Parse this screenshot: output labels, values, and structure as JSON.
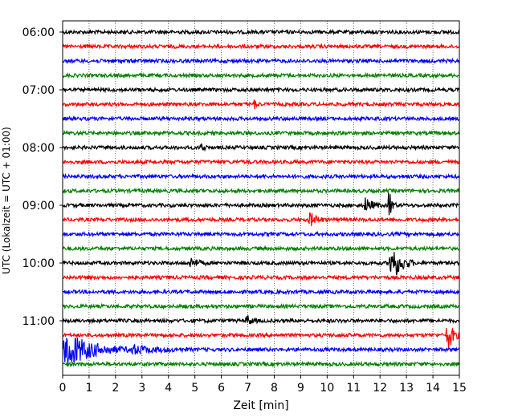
{
  "chart_data": {
    "type": "line",
    "title": "",
    "xlabel": "Zeit  [min]",
    "ylabel": "UTC (Lokalzeit = UTC + 01:00)",
    "xlim": [
      0,
      15
    ],
    "x_ticks": [
      "0",
      "1",
      "2",
      "3",
      "4",
      "5",
      "6",
      "7",
      "8",
      "9",
      "10",
      "11",
      "12",
      "13",
      "14",
      "15"
    ],
    "y_ticks": [
      "06:00",
      "07:00",
      "08:00",
      "09:00",
      "10:00",
      "11:00"
    ],
    "grid": {
      "vertical": true,
      "horizontal": false,
      "style": "dotted"
    },
    "trace_interval_minutes": 15,
    "first_trace_time": "06:00",
    "colors_cycle": [
      "#000000",
      "#ff0000",
      "#0000ff",
      "#008000"
    ],
    "traces": [
      {
        "time": "06:00",
        "color": "#000000",
        "events": []
      },
      {
        "time": "06:15",
        "color": "#ff0000",
        "events": []
      },
      {
        "time": "06:30",
        "color": "#0000ff",
        "events": []
      },
      {
        "time": "06:45",
        "color": "#008000",
        "events": []
      },
      {
        "time": "07:00",
        "color": "#000000",
        "events": []
      },
      {
        "time": "07:15",
        "color": "#ff0000",
        "events": [
          {
            "start": 7.2,
            "end": 7.5,
            "amplitude": 0.25
          }
        ]
      },
      {
        "time": "07:30",
        "color": "#0000ff",
        "events": []
      },
      {
        "time": "07:45",
        "color": "#008000",
        "events": []
      },
      {
        "time": "08:00",
        "color": "#000000",
        "events": [
          {
            "start": 5.2,
            "end": 5.5,
            "amplitude": 0.3
          }
        ]
      },
      {
        "time": "08:15",
        "color": "#ff0000",
        "events": []
      },
      {
        "time": "08:30",
        "color": "#0000ff",
        "events": []
      },
      {
        "time": "08:45",
        "color": "#008000",
        "events": []
      },
      {
        "time": "09:00",
        "color": "#000000",
        "events": [
          {
            "start": 11.4,
            "end": 12.1,
            "amplitude": 0.35
          },
          {
            "start": 12.3,
            "end": 12.6,
            "amplitude": 0.9
          }
        ]
      },
      {
        "time": "09:15",
        "color": "#ff0000",
        "events": [
          {
            "start": 9.3,
            "end": 10.0,
            "amplitude": 0.35
          }
        ]
      },
      {
        "time": "09:30",
        "color": "#0000ff",
        "events": []
      },
      {
        "time": "09:45",
        "color": "#008000",
        "events": []
      },
      {
        "time": "10:00",
        "color": "#000000",
        "events": [
          {
            "start": 12.35,
            "end": 13.3,
            "amplitude": 1.0
          },
          {
            "start": 4.8,
            "end": 5.5,
            "amplitude": 0.25
          }
        ]
      },
      {
        "time": "10:15",
        "color": "#ff0000",
        "events": []
      },
      {
        "time": "10:30",
        "color": "#0000ff",
        "events": []
      },
      {
        "time": "10:45",
        "color": "#008000",
        "events": []
      },
      {
        "time": "11:00",
        "color": "#000000",
        "events": [
          {
            "start": 6.9,
            "end": 7.4,
            "amplitude": 0.3
          }
        ]
      },
      {
        "time": "11:15",
        "color": "#ff0000",
        "events": [
          {
            "start": 14.5,
            "end": 15.0,
            "amplitude": 1.0
          }
        ]
      },
      {
        "time": "11:30",
        "color": "#0000ff",
        "events": [
          {
            "start": 0.0,
            "end": 2.5,
            "amplitude": 0.9
          },
          {
            "start": 2.5,
            "end": 5.0,
            "amplitude": 0.2
          }
        ]
      },
      {
        "time": "11:45",
        "color": "#008000",
        "events": []
      }
    ]
  }
}
